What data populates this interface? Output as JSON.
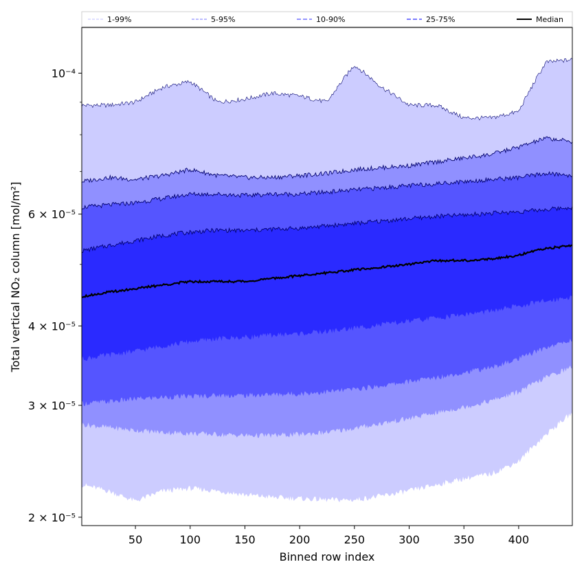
{
  "chart_data": {
    "type": "area",
    "title": "",
    "xlabel": "Binned row index",
    "ylabel": "Total vertical NO₂ column [mol/m²]",
    "y_scale": "log",
    "xlim": [
      1,
      449
    ],
    "ylim": [
      1.94e-05,
      0.000118
    ],
    "x_ticks": [
      50,
      100,
      150,
      200,
      250,
      300,
      350,
      400
    ],
    "y_ticks": [
      {
        "value": 2e-05,
        "label": "2 × 10⁻⁵"
      },
      {
        "value": 3e-05,
        "label": "3 × 10⁻⁵"
      },
      {
        "value": 4e-05,
        "label": "4 × 10⁻⁵"
      },
      {
        "value": 6e-05,
        "label": "6 × 10⁻⁵"
      },
      {
        "value": 0.0001,
        "label": "10⁻⁴"
      }
    ],
    "y_minor_ticks": [
      5e-05,
      7e-05,
      8e-05,
      9e-05
    ],
    "legend_position": "top",
    "grid": false,
    "x": [
      1,
      25,
      50,
      75,
      100,
      125,
      150,
      175,
      200,
      225,
      250,
      275,
      300,
      325,
      350,
      375,
      400,
      425,
      449
    ],
    "bands": [
      {
        "name": "1-99%",
        "color": "#ccccff",
        "upper": [
          8.9e-05,
          8.9e-05,
          9e-05,
          9.5e-05,
          9.7e-05,
          9e-05,
          9.1e-05,
          9.3e-05,
          9.2e-05,
          9e-05,
          0.000103,
          9.5e-05,
          8.9e-05,
          8.9e-05,
          8.5e-05,
          8.5e-05,
          8.7e-05,
          0.000104,
          0.000105
        ],
        "lower": [
          2.25e-05,
          2.2e-05,
          2.12e-05,
          2.2e-05,
          2.22e-05,
          2.2e-05,
          2.17e-05,
          2.15e-05,
          2.14e-05,
          2.13e-05,
          2.13e-05,
          2.16e-05,
          2.2e-05,
          2.25e-05,
          2.3e-05,
          2.34e-05,
          2.45e-05,
          2.7e-05,
          2.92e-05
        ]
      },
      {
        "name": "5-95%",
        "color": "#9090ff",
        "upper": [
          6.75e-05,
          6.85e-05,
          6.8e-05,
          6.9e-05,
          7.05e-05,
          6.9e-05,
          6.85e-05,
          6.85e-05,
          6.9e-05,
          6.95e-05,
          7.05e-05,
          7.1e-05,
          7.15e-05,
          7.25e-05,
          7.35e-05,
          7.45e-05,
          7.65e-05,
          7.9e-05,
          7.8e-05
        ],
        "lower": [
          2.8e-05,
          2.77e-05,
          2.74e-05,
          2.72e-05,
          2.71e-05,
          2.7e-05,
          2.69e-05,
          2.69e-05,
          2.7e-05,
          2.72e-05,
          2.76e-05,
          2.81e-05,
          2.86e-05,
          2.92e-05,
          2.98e-05,
          3.05e-05,
          3.15e-05,
          3.32e-05,
          3.45e-05
        ]
      },
      {
        "name": "10-90%",
        "color": "#5555ff",
        "upper": [
          6.15e-05,
          6.2e-05,
          6.25e-05,
          6.35e-05,
          6.45e-05,
          6.45e-05,
          6.42e-05,
          6.45e-05,
          6.45e-05,
          6.5e-05,
          6.55e-05,
          6.6e-05,
          6.65e-05,
          6.7e-05,
          6.75e-05,
          6.8e-05,
          6.85e-05,
          6.95e-05,
          6.9e-05
        ],
        "lower": [
          3.02e-05,
          3.04e-05,
          3.07e-05,
          3.09e-05,
          3.1e-05,
          3.11e-05,
          3.11e-05,
          3.12e-05,
          3.13e-05,
          3.15e-05,
          3.18e-05,
          3.22e-05,
          3.27e-05,
          3.32e-05,
          3.38e-05,
          3.44e-05,
          3.55e-05,
          3.7e-05,
          3.8e-05
        ]
      },
      {
        "name": "25-75%",
        "color": "#2a2aff",
        "upper": [
          5.25e-05,
          5.35e-05,
          5.45e-05,
          5.55e-05,
          5.62e-05,
          5.66e-05,
          5.65e-05,
          5.68e-05,
          5.7e-05,
          5.75e-05,
          5.8e-05,
          5.85e-05,
          5.9e-05,
          5.95e-05,
          5.98e-05,
          6.02e-05,
          6.05e-05,
          6.1e-05,
          6.15e-05
        ],
        "lower": [
          3.55e-05,
          3.6e-05,
          3.65e-05,
          3.72e-05,
          3.78e-05,
          3.82e-05,
          3.84e-05,
          3.87e-05,
          3.89e-05,
          3.92e-05,
          3.97e-05,
          4.02e-05,
          4.07e-05,
          4.12e-05,
          4.17e-05,
          4.22e-05,
          4.3e-05,
          4.38e-05,
          4.45e-05
        ]
      }
    ],
    "legend": [
      {
        "name": "1-99%",
        "color": "#ccccff",
        "dash": "4,2"
      },
      {
        "name": "5-95%",
        "color": "#9090ff",
        "dash": "4,2"
      },
      {
        "name": "10-90%",
        "color": "#5555ff",
        "dash": "6,3"
      },
      {
        "name": "25-75%",
        "color": "#2a2aff",
        "dash": "6,3"
      },
      {
        "name": "Median",
        "color": "#000000",
        "dash": ""
      }
    ],
    "series": [
      {
        "name": "Median",
        "color": "#000000",
        "values": [
          4.45e-05,
          4.52e-05,
          4.58e-05,
          4.64e-05,
          4.7e-05,
          4.7e-05,
          4.7e-05,
          4.75e-05,
          4.8e-05,
          4.85e-05,
          4.9e-05,
          4.95e-05,
          5e-05,
          5.07e-05,
          5.07e-05,
          5.1e-05,
          5.17e-05,
          5.3e-05,
          5.35e-05
        ]
      }
    ]
  }
}
